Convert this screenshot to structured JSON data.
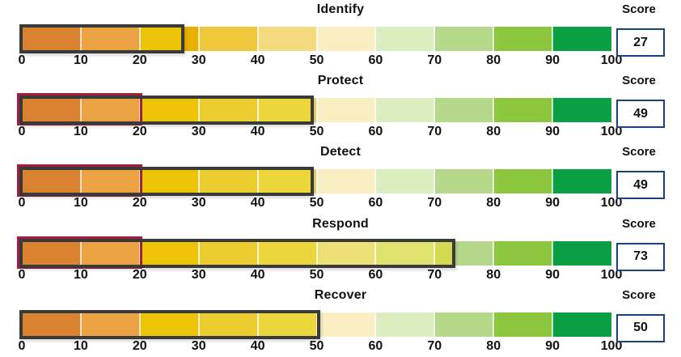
{
  "labels": {
    "score": "Score"
  },
  "gauge": {
    "min": 0,
    "max": 100,
    "tick_step": 10,
    "ticks": [
      0,
      10,
      20,
      30,
      40,
      50,
      60,
      70,
      80,
      90,
      100
    ],
    "background_colors": [
      "#d9822f",
      "#eba242",
      "#eab000",
      "#efc83e",
      "#f4da7c",
      "#f9efc3",
      "#dcedc0",
      "#b5d88b",
      "#8dc73f",
      "#0a9e45"
    ],
    "value_colors": [
      "#d9822f",
      "#eba242",
      "#ecc405",
      "#eccd30",
      "#ebd63c",
      "#ece077",
      "#dfe26e",
      "#d2da52",
      "#aace4a",
      "#5bb043"
    ],
    "divider_color": "rgba(255,255,255,0.75)",
    "outline_color": "#3a3a38",
    "marker_color": "#a51e3f",
    "marker_extent": 20,
    "score_box_border_color": "#1a4080"
  },
  "rows": [
    {
      "title": "Identify",
      "score": 27,
      "marker": false
    },
    {
      "title": "Protect",
      "score": 49,
      "marker": true
    },
    {
      "title": "Detect",
      "score": 49,
      "marker": true
    },
    {
      "title": "Respond",
      "score": 73,
      "marker": true
    },
    {
      "title": "Recover",
      "score": 50,
      "marker": false
    }
  ],
  "chart_data": {
    "type": "bar",
    "subtype": "horizontal-bullet-gauge",
    "title": "",
    "categories": [
      "Identify",
      "Protect",
      "Detect",
      "Respond",
      "Recover"
    ],
    "values": [
      27,
      49,
      49,
      73,
      50
    ],
    "value_label": "Score",
    "xlabel": "",
    "ylabel": "",
    "xlim": [
      0,
      100
    ],
    "tick_interval": 10,
    "grid": false,
    "legend": false,
    "scale_band_colors": [
      "#d9822f",
      "#eba242",
      "#eab000",
      "#efc83e",
      "#f4da7c",
      "#f9efc3",
      "#dcedc0",
      "#b5d88b",
      "#8dc73f",
      "#0a9e45"
    ]
  }
}
